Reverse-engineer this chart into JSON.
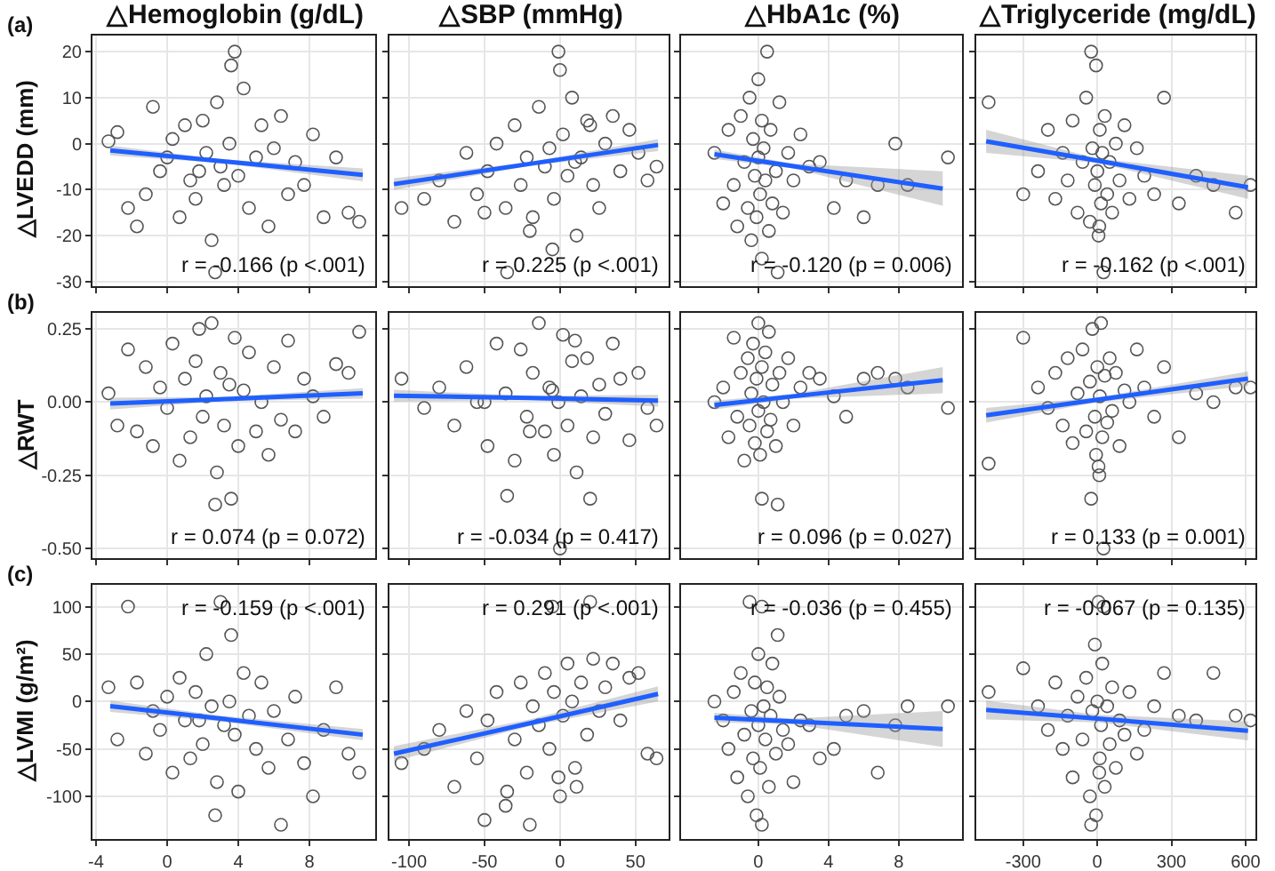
{
  "chart_data": [
    {
      "type": "scatter",
      "title": "△Hemoglobin (g/dL)",
      "ylabel": "△LVEDD (mm)",
      "annotations": [
        "(a)",
        "r = -0.166 (p <.001)"
      ],
      "xlim": [
        -4.2,
        11.7
      ],
      "xticks": [
        -4,
        0,
        4,
        8
      ],
      "ylim": [
        -31,
        23.5
      ],
      "yticks": [
        -30,
        -20,
        -10,
        0,
        10,
        20
      ],
      "grid": true,
      "tick_labels": "y",
      "series": [
        {
          "marker": "circle",
          "color": "#555555",
          "x": [
            -3.3,
            -2.8,
            -2.2,
            -1.7,
            -1.2,
            -0.8,
            -0.4,
            0,
            0.3,
            0.7,
            1,
            1.3,
            1.6,
            2,
            2.2,
            2.5,
            2.8,
            3,
            3.2,
            3.5,
            3.8,
            4,
            4.3,
            4.6,
            5,
            5.3,
            5.7,
            6,
            6.4,
            6.8,
            7.2,
            7.7,
            8.2,
            8.8,
            9.5,
            10.2,
            10.8,
            3.6,
            2.7,
            1.8
          ],
          "values": [
            0.5,
            2.5,
            -14,
            -18,
            -11,
            8,
            -6,
            -3,
            1,
            -16,
            4,
            -8,
            -12,
            5,
            -2,
            -21,
            9,
            -5,
            -9,
            0,
            20,
            -7,
            12,
            -14,
            -3,
            4,
            -18,
            -1,
            6,
            -11,
            -4,
            -9,
            2,
            -16,
            -3,
            -15,
            -17,
            17,
            -28,
            -6
          ]
        },
        {
          "type": "line",
          "color": "#1f5fff",
          "x": [
            -3.2,
            3,
            11
          ],
          "values": [
            -1.5,
            -3.8,
            -6.8
          ],
          "lower": [
            -2.6,
            -4.2,
            -8.2
          ],
          "upper": [
            -0.4,
            -3.4,
            -5.4
          ]
        }
      ]
    },
    {
      "type": "scatter",
      "title": "△SBP (mmHg)",
      "annotations": [
        "r = 0.225 (p <.001)"
      ],
      "xlim": [
        -113,
        72
      ],
      "xticks": [
        -100,
        -50,
        0,
        50
      ],
      "ylim": [
        -31,
        23.5
      ],
      "yticks": [
        -30,
        -20,
        -10,
        0,
        10,
        20
      ],
      "grid": true,
      "tick_labels": false,
      "series": [
        {
          "marker": "circle",
          "color": "#555555",
          "x": [
            -105,
            -90,
            -80,
            -70,
            -62,
            -55,
            -48,
            -42,
            -36,
            -30,
            -26,
            -22,
            -18,
            -14,
            -10,
            -7,
            -4,
            -1,
            2,
            5,
            8,
            11,
            14,
            18,
            22,
            26,
            30,
            35,
            40,
            46,
            52,
            58,
            64,
            -20,
            -5,
            0,
            -35,
            10,
            -50,
            20
          ],
          "values": [
            -14,
            -12,
            -8,
            -17,
            -2,
            -11,
            -6,
            0,
            -14,
            4,
            -9,
            -3,
            -16,
            8,
            -5,
            -1,
            -12,
            20,
            2,
            -7,
            10,
            -20,
            -3,
            5,
            -9,
            -14,
            0,
            6,
            -6,
            3,
            -2,
            -8,
            -5,
            -19,
            -23,
            16,
            -28,
            -4,
            -15,
            4
          ]
        },
        {
          "type": "line",
          "color": "#1f5fff",
          "x": [
            -110,
            -20,
            65
          ],
          "values": [
            -8.8,
            -4.4,
            -0.3
          ],
          "lower": [
            -10.1,
            -4.8,
            -1.6
          ],
          "upper": [
            -7.5,
            -4.0,
            1.0
          ]
        }
      ]
    },
    {
      "type": "scatter",
      "title": "△HbA1c (%)",
      "annotations": [
        "r = -0.120 (p = 0.006)"
      ],
      "xlim": [
        -4.4,
        11.6
      ],
      "xticks": [
        0,
        4,
        8
      ],
      "ylim": [
        -31,
        23.5
      ],
      "yticks": [
        -30,
        -20,
        -10,
        0,
        10,
        20
      ],
      "grid": true,
      "tick_labels": false,
      "series": [
        {
          "marker": "circle",
          "color": "#555555",
          "x": [
            -2.5,
            -2,
            -1.7,
            -1.4,
            -1.2,
            -1,
            -0.8,
            -0.6,
            -0.5,
            -0.4,
            -0.3,
            -0.2,
            -0.1,
            0,
            0,
            0.1,
            0.2,
            0.2,
            0.3,
            0.4,
            0.5,
            0.6,
            0.7,
            0.8,
            1,
            1.2,
            1.4,
            1.7,
            2,
            2.4,
            2.9,
            3.5,
            4.3,
            5,
            6,
            6.8,
            7.8,
            8.5,
            10.8,
            1.1
          ],
          "values": [
            -2,
            -13,
            3,
            -9,
            -18,
            6,
            -4,
            -14,
            10,
            -21,
            1,
            -7,
            -16,
            -3,
            14,
            -11,
            5,
            -25,
            -1,
            -8,
            20,
            -19,
            3,
            -13,
            -6,
            9,
            -15,
            -2,
            -8,
            2,
            -5,
            -4,
            -14,
            -8,
            -16,
            -9,
            0,
            -9,
            -3,
            -28
          ]
        },
        {
          "type": "line",
          "color": "#1f5fff",
          "x": [
            -2.5,
            2,
            10.5
          ],
          "values": [
            -2.3,
            -4.9,
            -9.8
          ],
          "lower": [
            -3.3,
            -5.4,
            -13.5
          ],
          "upper": [
            -1.3,
            -4.4,
            -6
          ]
        }
      ]
    },
    {
      "type": "scatter",
      "title": "△Triglyceride (mg/dL)",
      "annotations": [
        "r = -0.162 (p <.001)"
      ],
      "xlim": [
        -490,
        640
      ],
      "xticks": [
        -300,
        0,
        300,
        600
      ],
      "ylim": [
        -31,
        23.5
      ],
      "yticks": [
        -30,
        -20,
        -10,
        0,
        10,
        20
      ],
      "grid": true,
      "tick_labels": false,
      "series": [
        {
          "marker": "circle",
          "color": "#555555",
          "x": [
            -440,
            -300,
            -240,
            -200,
            -170,
            -140,
            -120,
            -100,
            -80,
            -60,
            -45,
            -30,
            -20,
            -10,
            -5,
            0,
            5,
            10,
            15,
            20,
            30,
            40,
            50,
            60,
            75,
            90,
            110,
            130,
            160,
            190,
            230,
            270,
            330,
            400,
            470,
            560,
            620,
            -25,
            25,
            8
          ],
          "values": [
            9,
            -11,
            -6,
            3,
            -12,
            -2,
            -8,
            5,
            -15,
            -4,
            10,
            -17,
            -1,
            -9,
            17,
            -6,
            -20,
            3,
            -13,
            -2,
            6,
            -11,
            -4,
            -15,
            0,
            -8,
            4,
            -12,
            -1,
            -7,
            -11,
            10,
            -13,
            -7,
            -9,
            -15,
            -9,
            20,
            -28,
            -18
          ]
        },
        {
          "type": "line",
          "color": "#1f5fff",
          "x": [
            -450,
            0,
            610
          ],
          "values": [
            0.5,
            -3.7,
            -9.5
          ],
          "lower": [
            -2,
            -4.2,
            -12
          ],
          "upper": [
            3,
            -3.2,
            -7
          ]
        }
      ]
    },
    {
      "type": "scatter",
      "ylabel": "△RWT",
      "annotations": [
        "(b)",
        "r = 0.074 (p = 0.072)"
      ],
      "xlim": [
        -4.2,
        11.7
      ],
      "xticks": [
        -4,
        0,
        4,
        8
      ],
      "ylim": [
        -0.533,
        0.305
      ],
      "yticks": [
        {
          "value": -0.5,
          "label": "-0.50"
        },
        {
          "value": -0.25,
          "label": "-0.25"
        },
        {
          "value": 0,
          "label": "0.00"
        },
        {
          "value": 0.25,
          "label": "0.25"
        }
      ],
      "grid": true,
      "tick_labels": "y",
      "series": [
        {
          "marker": "circle",
          "color": "#555555",
          "x": [
            -3.3,
            -2.8,
            -2.2,
            -1.7,
            -1.2,
            -0.8,
            -0.4,
            0,
            0.3,
            0.7,
            1,
            1.3,
            1.6,
            2,
            2.2,
            2.5,
            2.8,
            3,
            3.2,
            3.5,
            3.8,
            4,
            4.3,
            4.6,
            5,
            5.3,
            5.7,
            6,
            6.4,
            6.8,
            7.2,
            7.7,
            8.2,
            8.8,
            9.5,
            10.2,
            10.8,
            3.6,
            2.7,
            1.8
          ],
          "values": [
            0.03,
            -0.08,
            0.18,
            -0.1,
            0.12,
            -0.15,
            0.05,
            -0.02,
            0.2,
            -0.2,
            0.08,
            -0.12,
            0.14,
            -0.05,
            0.02,
            0.27,
            -0.24,
            0.1,
            -0.08,
            0.06,
            0.22,
            -0.15,
            0.04,
            0.17,
            -0.1,
            0,
            -0.18,
            0.12,
            -0.06,
            0.21,
            -0.1,
            0.08,
            0.02,
            -0.05,
            0.13,
            0.1,
            0.24,
            -0.33,
            -0.35,
            0.25
          ]
        },
        {
          "type": "line",
          "color": "#1f5fff",
          "x": [
            -3.2,
            3,
            11
          ],
          "values": [
            -0.005,
            0.01,
            0.03
          ],
          "lower": [
            -0.025,
            0.003,
            0.012
          ],
          "upper": [
            0.015,
            0.017,
            0.048
          ]
        }
      ]
    },
    {
      "type": "scatter",
      "annotations": [
        "r = -0.034 (p = 0.417)"
      ],
      "xlim": [
        -113,
        72
      ],
      "xticks": [
        -100,
        -50,
        0,
        50
      ],
      "ylim": [
        -0.533,
        0.305
      ],
      "yticks": [
        -0.5,
        -0.25,
        0,
        0.25
      ],
      "grid": true,
      "tick_labels": false,
      "series": [
        {
          "marker": "circle",
          "color": "#555555",
          "x": [
            -105,
            -90,
            -80,
            -70,
            -62,
            -55,
            -48,
            -42,
            -36,
            -30,
            -26,
            -22,
            -18,
            -14,
            -10,
            -7,
            -4,
            -1,
            2,
            5,
            8,
            11,
            14,
            18,
            22,
            26,
            30,
            35,
            40,
            46,
            52,
            58,
            64,
            -20,
            -5,
            0,
            -35,
            10,
            -50,
            20
          ],
          "values": [
            0.08,
            -0.02,
            0.05,
            -0.08,
            0.12,
            0,
            -0.15,
            0.2,
            0.03,
            -0.2,
            0.18,
            -0.05,
            0.1,
            0.27,
            -0.1,
            0.05,
            -0.18,
            0,
            0.23,
            -0.08,
            0.14,
            -0.24,
            0.02,
            0.15,
            -0.12,
            0.06,
            -0.04,
            0.2,
            0.08,
            -0.13,
            0.1,
            -0.02,
            -0.08,
            -0.1,
            0.04,
            -0.5,
            -0.32,
            0.21,
            0,
            -0.33
          ]
        },
        {
          "type": "line",
          "color": "#1f5fff",
          "x": [
            -110,
            -20,
            65
          ],
          "values": [
            0.022,
            0.014,
            0.005
          ],
          "lower": [
            0.002,
            0.007,
            -0.015
          ],
          "upper": [
            0.042,
            0.021,
            0.025
          ]
        }
      ]
    },
    {
      "type": "scatter",
      "annotations": [
        "r = 0.096 (p = 0.027)"
      ],
      "xlim": [
        -4.4,
        11.6
      ],
      "xticks": [
        0,
        4,
        8
      ],
      "ylim": [
        -0.533,
        0.305
      ],
      "yticks": [
        -0.5,
        -0.25,
        0,
        0.25
      ],
      "grid": true,
      "tick_labels": false,
      "series": [
        {
          "marker": "circle",
          "color": "#555555",
          "x": [
            -2.5,
            -2,
            -1.7,
            -1.4,
            -1.2,
            -1,
            -0.8,
            -0.6,
            -0.5,
            -0.4,
            -0.3,
            -0.2,
            -0.1,
            0,
            0,
            0.1,
            0.2,
            0.2,
            0.3,
            0.4,
            0.5,
            0.6,
            0.7,
            0.8,
            1,
            1.2,
            1.4,
            1.7,
            2,
            2.4,
            2.9,
            3.5,
            4.3,
            5,
            6,
            6.8,
            7.8,
            8.5,
            10.8,
            1.1
          ],
          "values": [
            0,
            0.05,
            -0.12,
            0.22,
            -0.05,
            0.1,
            -0.2,
            0.15,
            -0.08,
            0.03,
            0.2,
            -0.14,
            0.08,
            -0.03,
            0.27,
            -0.18,
            0.12,
            -0.33,
            0,
            0.17,
            -0.1,
            0.24,
            -0.06,
            0.06,
            -0.15,
            0.1,
            0,
            0.15,
            -0.08,
            0.05,
            0.1,
            0.08,
            0.02,
            -0.05,
            0.08,
            0.1,
            0.08,
            0.05,
            -0.02,
            -0.35
          ]
        },
        {
          "type": "line",
          "color": "#1f5fff",
          "x": [
            -2.5,
            2,
            10.5
          ],
          "values": [
            -0.01,
            0.02,
            0.075
          ],
          "lower": [
            -0.025,
            0.012,
            0.03
          ],
          "upper": [
            0.005,
            0.028,
            0.12
          ]
        }
      ]
    },
    {
      "type": "scatter",
      "annotations": [
        "r = 0.133 (p = 0.001)"
      ],
      "xlim": [
        -490,
        640
      ],
      "xticks": [
        -300,
        0,
        300,
        600
      ],
      "ylim": [
        -0.533,
        0.305
      ],
      "yticks": [
        -0.5,
        -0.25,
        0,
        0.25
      ],
      "grid": true,
      "tick_labels": false,
      "series": [
        {
          "marker": "circle",
          "color": "#555555",
          "x": [
            -440,
            -300,
            -240,
            -200,
            -170,
            -140,
            -120,
            -100,
            -80,
            -60,
            -45,
            -30,
            -20,
            -10,
            -5,
            0,
            5,
            10,
            15,
            20,
            30,
            40,
            50,
            60,
            75,
            90,
            110,
            130,
            160,
            190,
            230,
            270,
            330,
            400,
            470,
            560,
            620,
            -25,
            25,
            8
          ],
          "values": [
            -0.21,
            0.22,
            0.05,
            -0.02,
            0.1,
            -0.08,
            0.15,
            -0.14,
            0.03,
            0.18,
            -0.1,
            0.07,
            0.25,
            -0.05,
            -0.18,
            0.12,
            -0.22,
            0.02,
            0.27,
            -0.12,
            0.09,
            -0.07,
            0.15,
            -0.03,
            0.1,
            -0.15,
            0.04,
            0,
            0.18,
            0.05,
            -0.05,
            0.12,
            -0.12,
            0.03,
            0,
            0.05,
            0.05,
            -0.33,
            -0.5,
            -0.25
          ]
        },
        {
          "type": "line",
          "color": "#1f5fff",
          "x": [
            -450,
            0,
            610
          ],
          "values": [
            -0.045,
            0.008,
            0.08
          ],
          "lower": [
            -0.07,
            0.0,
            0.055
          ],
          "upper": [
            -0.02,
            0.016,
            0.105
          ]
        }
      ]
    },
    {
      "type": "scatter",
      "ylabel": "△LVMI (g/m²)",
      "annotations": [
        "(c)",
        "r = -0.159 (p <.001)"
      ],
      "xlim": [
        -4.2,
        11.7
      ],
      "xticks": [
        -4,
        0,
        4,
        8
      ],
      "ylim": [
        -145,
        123
      ],
      "yticks": [
        -100,
        -50,
        0,
        50,
        100
      ],
      "grid": true,
      "series": [
        {
          "marker": "circle",
          "color": "#555555",
          "x": [
            -3.3,
            -2.8,
            -2.2,
            -1.7,
            -1.2,
            -0.8,
            -0.4,
            0,
            0.3,
            0.7,
            1,
            1.3,
            1.6,
            2,
            2.2,
            2.5,
            2.8,
            3,
            3.2,
            3.5,
            3.8,
            4,
            4.3,
            4.6,
            5,
            5.3,
            5.7,
            6,
            6.4,
            6.8,
            7.2,
            7.7,
            8.2,
            8.8,
            9.5,
            10.2,
            10.8,
            3.6,
            2.7,
            1.8
          ],
          "values": [
            15,
            -40,
            100,
            20,
            -55,
            -10,
            -30,
            5,
            -75,
            25,
            -20,
            -60,
            10,
            -45,
            50,
            -5,
            -85,
            105,
            -25,
            0,
            -35,
            -95,
            30,
            -15,
            -50,
            20,
            -70,
            -10,
            -130,
            -40,
            5,
            -65,
            -100,
            -30,
            15,
            -55,
            -75,
            70,
            -120,
            -20
          ]
        },
        {
          "type": "line",
          "color": "#1f5fff",
          "x": [
            -3.2,
            3,
            11
          ],
          "values": [
            -5,
            -18,
            -35
          ],
          "lower": [
            -11,
            -21,
            -41
          ],
          "upper": [
            1,
            -15,
            -29
          ]
        }
      ]
    },
    {
      "type": "scatter",
      "annotations": [
        "r = 0.291 (p <.001)"
      ],
      "xlim": [
        -113,
        72
      ],
      "xticks": [
        -100,
        -50,
        0,
        50
      ],
      "ylim": [
        -145,
        123
      ],
      "yticks": [
        -100,
        -50,
        0,
        50,
        100
      ],
      "grid": true,
      "tick_labels": "x",
      "series": [
        {
          "marker": "circle",
          "color": "#555555",
          "x": [
            -105,
            -90,
            -80,
            -70,
            -62,
            -55,
            -48,
            -42,
            -36,
            -30,
            -26,
            -22,
            -18,
            -14,
            -10,
            -7,
            -4,
            -1,
            2,
            5,
            8,
            11,
            14,
            18,
            22,
            26,
            30,
            35,
            40,
            46,
            52,
            58,
            64,
            -20,
            -5,
            0,
            -35,
            10,
            -50,
            20
          ],
          "values": [
            -65,
            -50,
            -30,
            -90,
            -10,
            -60,
            -20,
            10,
            -110,
            -40,
            20,
            -75,
            -5,
            -25,
            30,
            -50,
            10,
            -80,
            -15,
            40,
            0,
            -90,
            20,
            -35,
            45,
            -10,
            15,
            40,
            -20,
            25,
            30,
            -55,
            -60,
            -130,
            100,
            -100,
            -95,
            -70,
            -125,
            105
          ]
        },
        {
          "type": "line",
          "color": "#1f5fff",
          "x": [
            -110,
            -20,
            65
          ],
          "values": [
            -55,
            -23,
            8
          ],
          "lower": [
            -63,
            -26,
            0
          ],
          "upper": [
            -47,
            -19,
            16
          ]
        }
      ]
    },
    {
      "type": "scatter",
      "annotations": [
        "r = -0.036 (p = 0.455)"
      ],
      "xlim": [
        -4.4,
        11.6
      ],
      "xticks": [
        0,
        4,
        8
      ],
      "ylim": [
        -145,
        123
      ],
      "yticks": [
        -100,
        -50,
        0,
        50,
        100
      ],
      "grid": true,
      "tick_labels": "x",
      "series": [
        {
          "marker": "circle",
          "color": "#555555",
          "x": [
            -2.5,
            -2,
            -1.7,
            -1.4,
            -1.2,
            -1,
            -0.8,
            -0.6,
            -0.5,
            -0.4,
            -0.3,
            -0.2,
            -0.1,
            0,
            0,
            0.1,
            0.2,
            0.2,
            0.3,
            0.4,
            0.5,
            0.6,
            0.7,
            0.8,
            1,
            1.2,
            1.4,
            1.7,
            2,
            2.4,
            2.9,
            3.5,
            4.3,
            5,
            6,
            6.8,
            7.8,
            8.5,
            10.8,
            1.1
          ],
          "values": [
            0,
            -20,
            -50,
            10,
            -80,
            30,
            -35,
            -100,
            105,
            -10,
            -60,
            20,
            -120,
            -25,
            50,
            -70,
            100,
            -130,
            -5,
            -40,
            15,
            -90,
            -15,
            40,
            -55,
            5,
            -30,
            -45,
            -85,
            -20,
            -25,
            -60,
            -50,
            -15,
            -10,
            -75,
            -25,
            -5,
            -5,
            70
          ]
        },
        {
          "type": "line",
          "color": "#1f5fff",
          "x": [
            -2.5,
            2,
            10.5
          ],
          "values": [
            -17,
            -21,
            -29
          ],
          "lower": [
            -22,
            -24,
            -48
          ],
          "upper": [
            -12,
            -18,
            -10
          ]
        }
      ]
    },
    {
      "type": "scatter",
      "annotations": [
        "r = -0.067 (p = 0.135)"
      ],
      "xlim": [
        -490,
        640
      ],
      "xticks": [
        -300,
        0,
        300,
        600
      ],
      "ylim": [
        -145,
        123
      ],
      "yticks": [
        -100,
        -50,
        0,
        50,
        100
      ],
      "grid": true,
      "tick_labels": "x",
      "series": [
        {
          "marker": "circle",
          "color": "#555555",
          "x": [
            -440,
            -300,
            -240,
            -200,
            -170,
            -140,
            -120,
            -100,
            -80,
            -60,
            -45,
            -30,
            -20,
            -10,
            -5,
            0,
            5,
            10,
            15,
            20,
            30,
            40,
            50,
            60,
            75,
            90,
            110,
            130,
            160,
            190,
            230,
            270,
            330,
            400,
            470,
            560,
            620,
            -25,
            25,
            8
          ],
          "values": [
            10,
            35,
            -5,
            -30,
            20,
            -50,
            -15,
            -80,
            5,
            -40,
            25,
            -100,
            -10,
            60,
            -120,
            0,
            105,
            -60,
            -25,
            40,
            -90,
            -5,
            -45,
            15,
            -70,
            -20,
            -35,
            10,
            -55,
            -30,
            -5,
            30,
            -15,
            -20,
            30,
            -15,
            -20,
            -130,
            100,
            -75
          ]
        },
        {
          "type": "line",
          "color": "#1f5fff",
          "x": [
            -450,
            0,
            610
          ],
          "values": [
            -9,
            -18,
            -31
          ],
          "lower": [
            -19,
            -22,
            -41
          ],
          "upper": [
            1,
            -14,
            -21
          ]
        }
      ]
    }
  ]
}
